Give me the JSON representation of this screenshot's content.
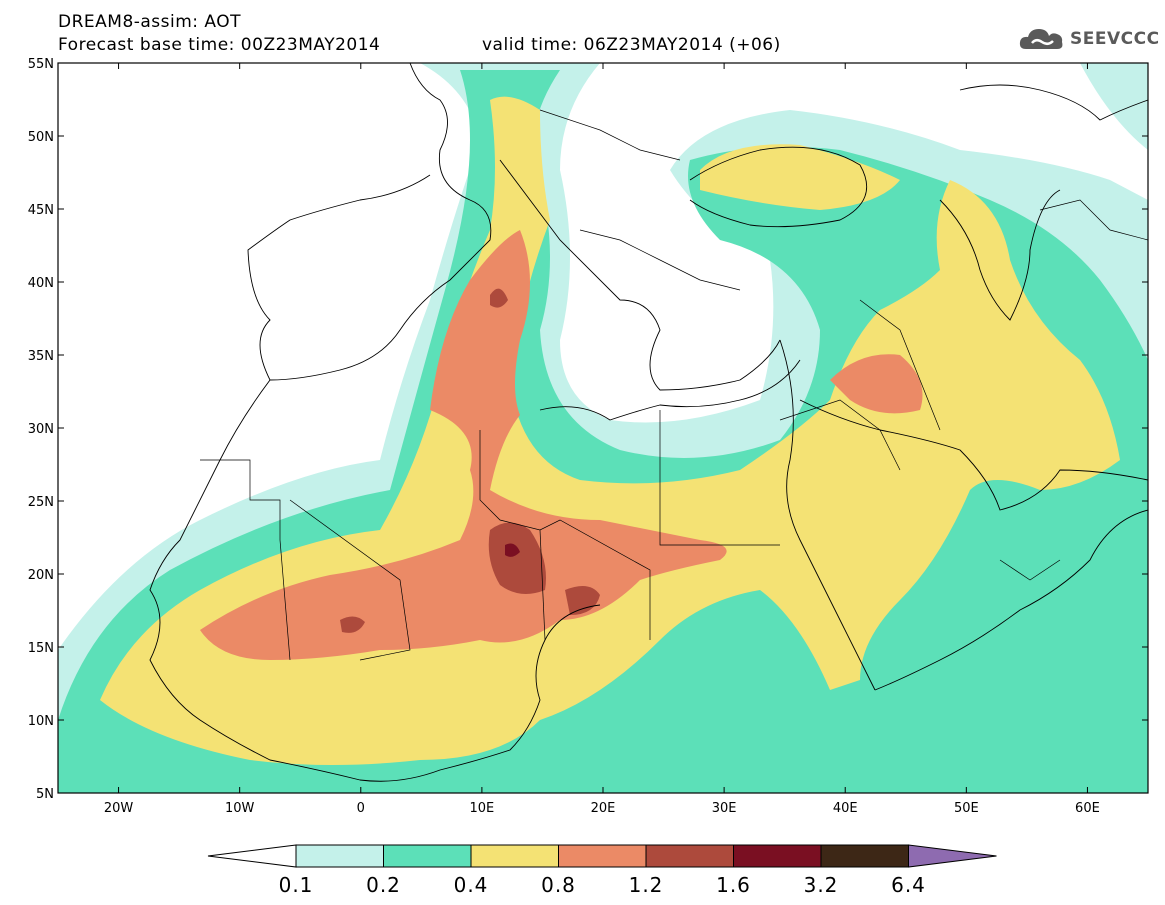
{
  "header": {
    "model_field": "DREAM8-assim: AOT",
    "base_time": "Forecast base time: 00Z23MAY2014",
    "valid_time": "valid time: 06Z23MAY2014 (+06)"
  },
  "logo": {
    "text": "SEEVCCC",
    "icon": "cloud-icon",
    "color": "#5a5a5a"
  },
  "map": {
    "lon_range": [
      -25,
      65
    ],
    "lat_range": [
      5,
      55
    ],
    "lat_ticks": [
      {
        "value": 55,
        "label": "55N"
      },
      {
        "value": 50,
        "label": "50N"
      },
      {
        "value": 45,
        "label": "45N"
      },
      {
        "value": 40,
        "label": "40N"
      },
      {
        "value": 35,
        "label": "35N"
      },
      {
        "value": 30,
        "label": "30N"
      },
      {
        "value": 25,
        "label": "25N"
      },
      {
        "value": 20,
        "label": "20N"
      },
      {
        "value": 15,
        "label": "15N"
      },
      {
        "value": 10,
        "label": "10N"
      },
      {
        "value": 5,
        "label": "5N"
      }
    ],
    "lon_ticks": [
      {
        "value": -20,
        "label": "20W"
      },
      {
        "value": -10,
        "label": "10W"
      },
      {
        "value": 0,
        "label": "0"
      },
      {
        "value": 10,
        "label": "10E"
      },
      {
        "value": 20,
        "label": "20E"
      },
      {
        "value": 30,
        "label": "30E"
      },
      {
        "value": 40,
        "label": "40E"
      },
      {
        "value": 50,
        "label": "50E"
      },
      {
        "value": 60,
        "label": "60E"
      }
    ]
  },
  "colorbar": {
    "under_color": "#ffffff",
    "over_color": "#8e6bb0",
    "bins": [
      {
        "color": "#c4f1ea"
      },
      {
        "color": "#5ce0b8"
      },
      {
        "color": "#f4e274"
      },
      {
        "color": "#eb8a66"
      },
      {
        "color": "#ad4a3c"
      },
      {
        "color": "#7a0f22"
      },
      {
        "color": "#3d2716"
      }
    ],
    "labels": [
      "0.1",
      "0.2",
      "0.4",
      "0.8",
      "1.2",
      "1.6",
      "3.2",
      "6.4"
    ]
  },
  "colors": {
    "aot_0_1": "#c4f1ea",
    "aot_0_2": "#5ce0b8",
    "aot_0_4": "#f4e274",
    "aot_0_8": "#eb8a66",
    "aot_1_2": "#ad4a3c",
    "aot_1_6": "#7a0f22"
  }
}
